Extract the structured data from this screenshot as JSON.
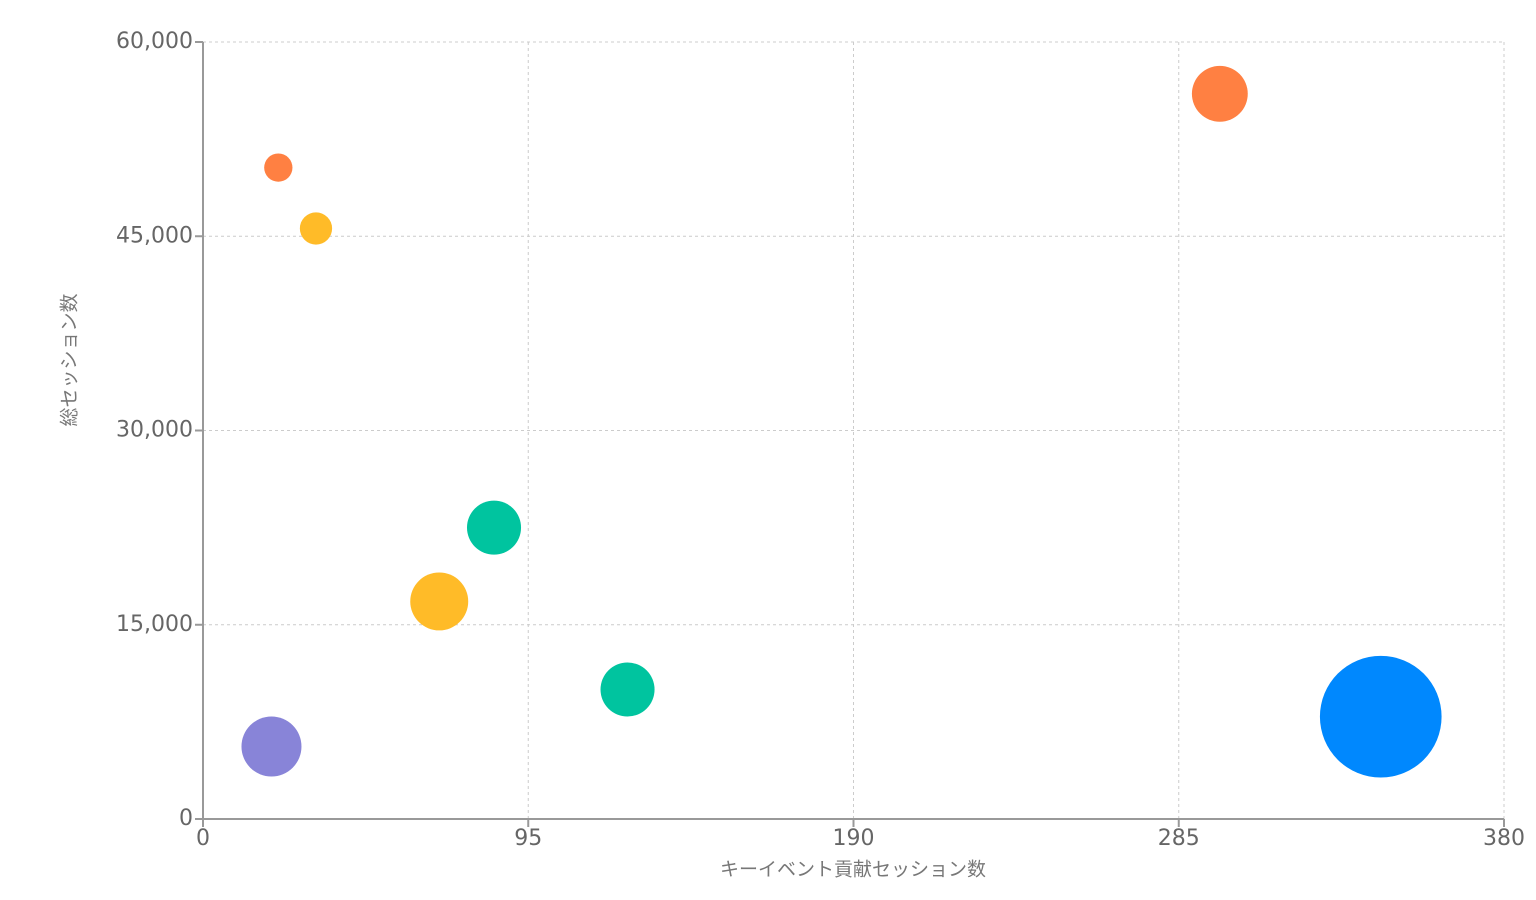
{
  "chart_data": {
    "type": "bubble",
    "x_label": "キーイベント貢献セッション数",
    "y_label": "総セッション数",
    "x": [
      22,
      33,
      297,
      85,
      69,
      124,
      20,
      344
    ],
    "values": [
      50300,
      45600,
      56000,
      22500,
      16800,
      10000,
      5600,
      7900
    ],
    "sizes": [
      200,
      260,
      780,
      730,
      840,
      730,
      900,
      3700
    ],
    "colors": [
      "#ff8042",
      "#ffbb28",
      "#ff8042",
      "#00c49f",
      "#ffbb28",
      "#00c49f",
      "#8884d8",
      "#0088fe"
    ],
    "xlim": [
      0,
      380
    ],
    "xticks": [
      0,
      95,
      190,
      285,
      380
    ],
    "ylim": [
      0,
      60000
    ],
    "yticks": [
      0,
      {
        "value": 15000,
        "label": "15,000"
      },
      {
        "value": 30000,
        "label": "30,000"
      },
      {
        "value": 45000,
        "label": "45,000"
      },
      {
        "value": 60000,
        "label": "60,000"
      }
    ],
    "grid": true
  }
}
